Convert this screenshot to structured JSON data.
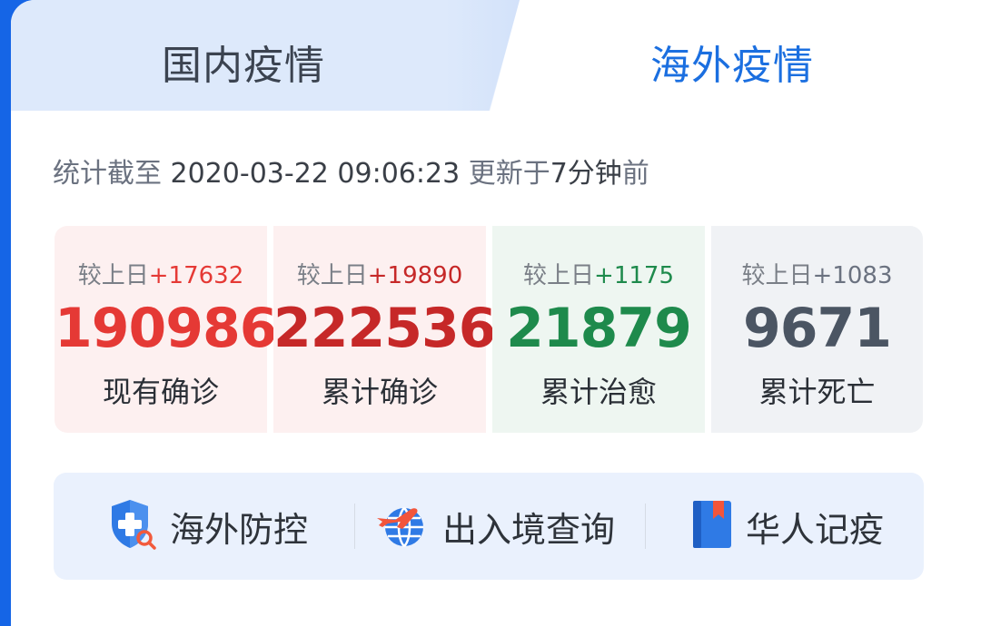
{
  "tabs": {
    "domestic": "国内疫情",
    "overseas": "海外疫情"
  },
  "stats_time": {
    "prefix": "统计截至 ",
    "datetime": "2020-03-22 09:06:23",
    "update_prefix": " 更新于",
    "update_value": "7分钟",
    "update_suffix": "前"
  },
  "stats": [
    {
      "delta_label": "较上日",
      "delta": "+17632",
      "value": "190986",
      "name": "现有确诊",
      "value_color": "#e53935",
      "delta_color": "#e53935"
    },
    {
      "delta_label": "较上日",
      "delta": "+19890",
      "value": "222536",
      "name": "累计确诊",
      "value_color": "#c62828",
      "delta_color": "#c62828"
    },
    {
      "delta_label": "较上日",
      "delta": "+1175",
      "value": "21879",
      "name": "累计治愈",
      "value_color": "#1e8a4c",
      "delta_color": "#1e8a4c"
    },
    {
      "delta_label": "较上日",
      "delta": "+1083",
      "value": "9671",
      "name": "累计死亡",
      "value_color": "#4b5563",
      "delta_color": "#6b7280"
    }
  ],
  "quick_links": [
    {
      "label": "海外防控",
      "icon": "shield-search-icon"
    },
    {
      "label": "出入境查询",
      "icon": "plane-globe-icon"
    },
    {
      "label": "华人记疫",
      "icon": "bookmark-book-icon"
    }
  ]
}
